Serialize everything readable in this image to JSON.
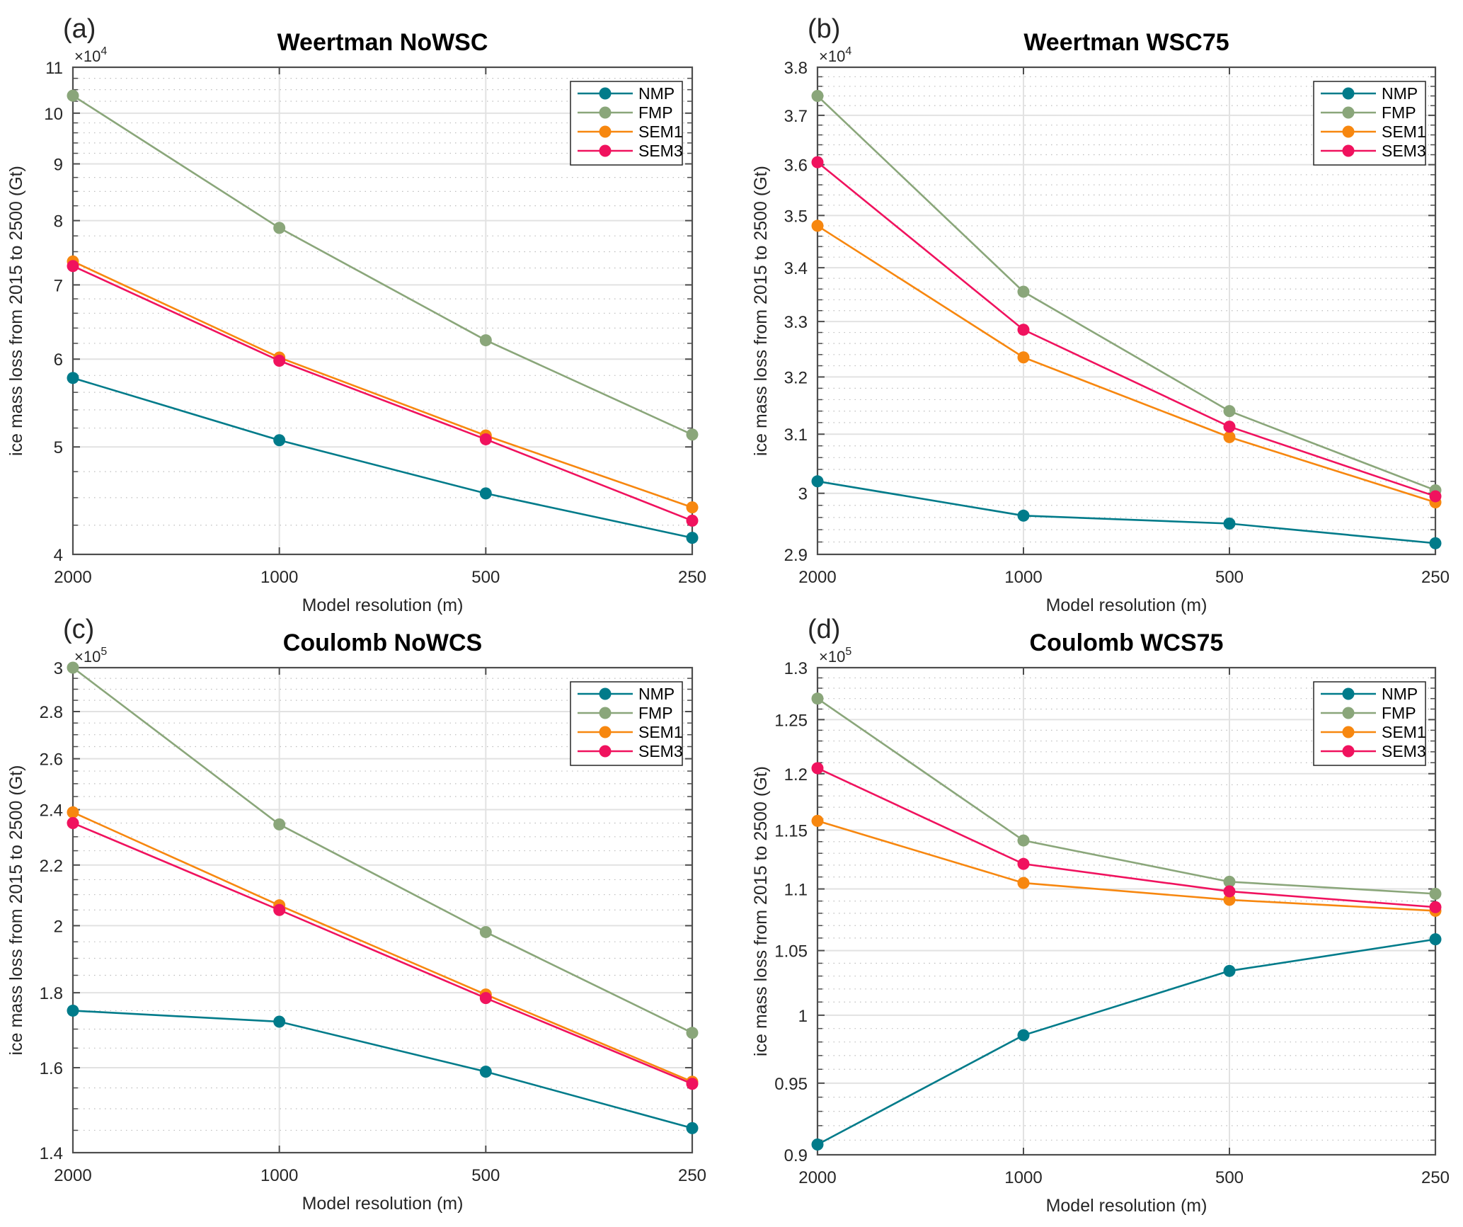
{
  "colors": {
    "NMP": "#007b8a",
    "FMP": "#8aa67a",
    "SEM1": "#f7870f",
    "SEM3": "#f0125e",
    "grid_major": "#e2e2e2",
    "grid_minor": "#bdbdbd",
    "axis": "#4d4d4d"
  },
  "chart_data": [
    {
      "type": "line",
      "panel_label": "(a)",
      "title": "Weertman NoWSC",
      "xlabel": "Model resolution (m)",
      "ylabel": "ice mass loss from 2015 to 2500 (Gt)",
      "y_scale": "log",
      "y_exponent_label": "×10",
      "y_exponent": "4",
      "categories": [
        "2000",
        "1000",
        "500",
        "250"
      ],
      "ylim": [
        4,
        11
      ],
      "yticks": [
        4,
        5,
        6,
        7,
        8,
        9,
        10,
        11
      ],
      "ytick_labels": [
        "4",
        "5",
        "6",
        "7",
        "8",
        "9",
        "10",
        "11"
      ],
      "yminor": [
        4.25,
        4.5,
        4.75,
        5.2,
        5.4,
        5.6,
        5.8,
        6.2,
        6.4,
        6.6,
        6.8,
        7.25,
        7.5,
        7.75,
        8.25,
        8.5,
        8.75,
        9.2,
        9.4,
        9.6,
        9.8,
        10.25,
        10.5,
        10.75
      ],
      "grid": true,
      "legend_position": "top-right",
      "series": [
        {
          "name": "NMP",
          "values": [
            5.77,
            5.07,
            4.54,
            4.14
          ]
        },
        {
          "name": "FMP",
          "values": [
            10.37,
            7.88,
            6.24,
            5.13
          ]
        },
        {
          "name": "SEM1",
          "values": [
            7.35,
            6.02,
            5.12,
            4.41
          ]
        },
        {
          "name": "SEM3",
          "values": [
            7.28,
            5.98,
            5.08,
            4.29
          ]
        }
      ]
    },
    {
      "type": "line",
      "panel_label": "(b)",
      "title": "Weertman WSC75",
      "xlabel": "Model resolution (m)",
      "ylabel": "ice mass loss from 2015 to 2500 (Gt)",
      "y_scale": "log",
      "y_exponent_label": "×10",
      "y_exponent": "4",
      "categories": [
        "2000",
        "1000",
        "500",
        "250"
      ],
      "ylim": [
        2.9,
        3.8
      ],
      "yticks": [
        2.9,
        3.0,
        3.1,
        3.2,
        3.3,
        3.4,
        3.5,
        3.6,
        3.7,
        3.8
      ],
      "ytick_labels": [
        "2.9",
        "3",
        "3.1",
        "3.2",
        "3.3",
        "3.4",
        "3.5",
        "3.6",
        "3.7",
        "3.8"
      ],
      "yminor": [
        2.92,
        2.94,
        2.96,
        2.98,
        3.02,
        3.04,
        3.06,
        3.08,
        3.12,
        3.14,
        3.16,
        3.18,
        3.22,
        3.24,
        3.26,
        3.28,
        3.32,
        3.34,
        3.36,
        3.38,
        3.42,
        3.44,
        3.46,
        3.48,
        3.52,
        3.54,
        3.56,
        3.58,
        3.62,
        3.64,
        3.66,
        3.68,
        3.72,
        3.74,
        3.76,
        3.78
      ],
      "grid": true,
      "legend_position": "top-right",
      "series": [
        {
          "name": "NMP",
          "values": [
            3.02,
            2.963,
            2.95,
            2.918
          ]
        },
        {
          "name": "FMP",
          "values": [
            3.74,
            3.355,
            3.14,
            3.005
          ]
        },
        {
          "name": "SEM1",
          "values": [
            3.48,
            3.235,
            3.095,
            2.985
          ]
        },
        {
          "name": "SEM3",
          "values": [
            3.605,
            3.285,
            3.113,
            2.995
          ]
        }
      ]
    },
    {
      "type": "line",
      "panel_label": "(c)",
      "title": "Coulomb NoWCS",
      "xlabel": "Model resolution (m)",
      "ylabel": "ice mass loss from 2015 to 2500 (Gt)",
      "y_scale": "log",
      "y_exponent_label": "×10",
      "y_exponent": "5",
      "categories": [
        "2000",
        "1000",
        "500",
        "250"
      ],
      "ylim": [
        1.4,
        3.0
      ],
      "yticks": [
        1.4,
        1.6,
        1.8,
        2.0,
        2.2,
        2.4,
        2.6,
        2.8,
        3.0
      ],
      "ytick_labels": [
        "1.4",
        "1.6",
        "1.8",
        "2",
        "2.2",
        "2.4",
        "2.6",
        "2.8",
        "3"
      ],
      "yminor": [
        1.45,
        1.5,
        1.55,
        1.65,
        1.7,
        1.75,
        1.85,
        1.9,
        1.95,
        2.05,
        2.1,
        2.15,
        2.25,
        2.3,
        2.35,
        2.45,
        2.5,
        2.55,
        2.65,
        2.7,
        2.75,
        2.85,
        2.9,
        2.95
      ],
      "grid": true,
      "legend_position": "top-right",
      "series": [
        {
          "name": "NMP",
          "values": [
            1.75,
            1.72,
            1.59,
            1.455
          ]
        },
        {
          "name": "FMP",
          "values": [
            3.0,
            2.345,
            1.98,
            1.69
          ]
        },
        {
          "name": "SEM1",
          "values": [
            2.39,
            2.065,
            1.795,
            1.565
          ]
        },
        {
          "name": "SEM3",
          "values": [
            2.35,
            2.05,
            1.785,
            1.56
          ]
        }
      ]
    },
    {
      "type": "line",
      "panel_label": "(d)",
      "title": "Coulomb WCS75",
      "xlabel": "Model resolution (m)",
      "ylabel": "ice mass loss from 2015 to 2500 (Gt)",
      "y_scale": "log",
      "y_exponent_label": "×10",
      "y_exponent": "5",
      "categories": [
        "2000",
        "1000",
        "500",
        "250"
      ],
      "ylim": [
        0.9,
        1.3
      ],
      "yticks": [
        0.9,
        0.95,
        1.0,
        1.05,
        1.1,
        1.15,
        1.2,
        1.25,
        1.3
      ],
      "ytick_labels": [
        "0.9",
        "0.95",
        "1",
        "1.05",
        "1.1",
        "1.15",
        "1.2",
        "1.25",
        "1.3"
      ],
      "yminor": [
        0.91,
        0.92,
        0.93,
        0.94,
        0.96,
        0.97,
        0.98,
        0.99,
        1.01,
        1.02,
        1.03,
        1.04,
        1.06,
        1.07,
        1.08,
        1.09,
        1.11,
        1.12,
        1.13,
        1.14,
        1.16,
        1.17,
        1.18,
        1.19,
        1.21,
        1.22,
        1.23,
        1.24,
        1.26,
        1.27,
        1.28,
        1.29
      ],
      "grid": true,
      "legend_position": "top-right",
      "series": [
        {
          "name": "NMP",
          "values": [
            0.907,
            0.985,
            1.034,
            1.059
          ]
        },
        {
          "name": "FMP",
          "values": [
            1.27,
            1.141,
            1.106,
            1.096
          ]
        },
        {
          "name": "SEM1",
          "values": [
            1.158,
            1.105,
            1.091,
            1.082
          ]
        },
        {
          "name": "SEM3",
          "values": [
            1.205,
            1.121,
            1.098,
            1.085
          ]
        }
      ]
    }
  ]
}
